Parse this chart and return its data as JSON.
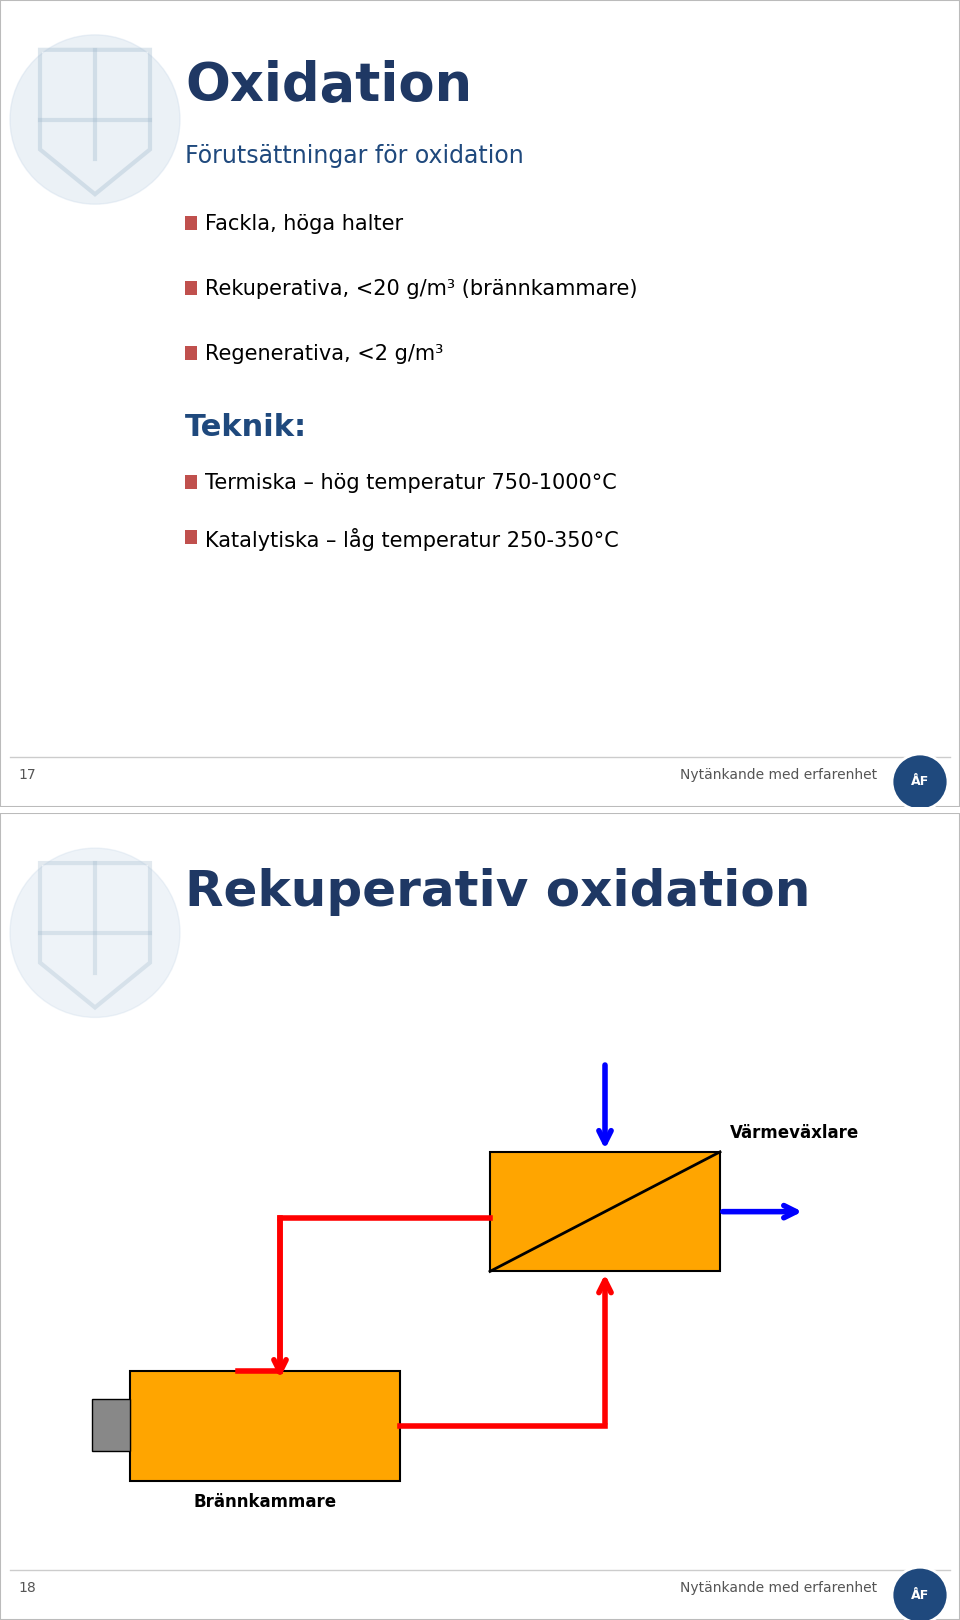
{
  "slide1": {
    "title": "Oxidation",
    "title_color": "#1F3864",
    "subtitle": "Förutsättningar för oxidation",
    "subtitle_color": "#1F497D",
    "bullets": [
      "Fackla, höga halter",
      "Rekuperativa, <20 g/m³ (brännkammare)",
      "Regenerativa, <2 g/m³"
    ],
    "section_title": "Teknik:",
    "section_color": "#1F497D",
    "tech_bullets": [
      "Termiska – hög temperatur 750-1000°C",
      "Katalytiska – låg temperatur 250-350°C"
    ],
    "bullet_color": "#C0504D",
    "text_color": "#000000",
    "page_num": "17",
    "footer": "Nytänkande med erfarenhet",
    "bg_color": "#FFFFFF",
    "border_color": "#BBBBBB",
    "gap_color": "#CCCCCC"
  },
  "slide2": {
    "title": "Rekuperativ oxidation",
    "title_color": "#1F3864",
    "page_num": "18",
    "footer": "Nytänkande med erfarenhet",
    "bg_color": "#FFFFFF",
    "border_color": "#BBBBBB",
    "orange_color": "#FFA500",
    "red_color": "#FF0000",
    "blue_color": "#0000FF",
    "gray_color": "#888888",
    "black_color": "#000000",
    "varmevaexlare_label": "Värmeväxlare",
    "brannkammare_label": "Brännkammare"
  }
}
